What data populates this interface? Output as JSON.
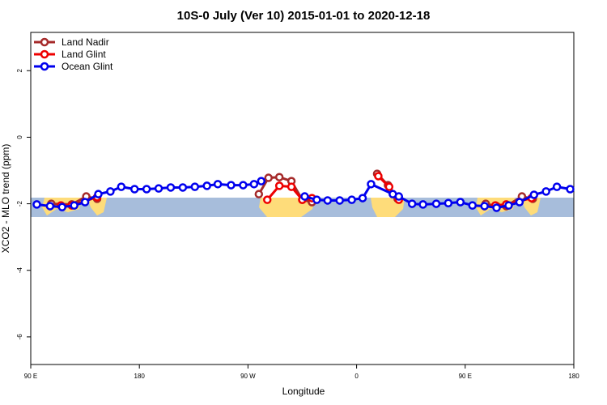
{
  "chart_data": {
    "type": "line",
    "title": "10S-0 July (Ver 10)   2015-01-01 to 2020-12-18",
    "x_label": "Longitude",
    "y_label": "XCO2 - MLO trend (ppm)",
    "xlim": [
      90,
      540
    ],
    "ylim": [
      -6.83,
      3.15
    ],
    "xticks": [
      {
        "value": 90,
        "label": "90 E"
      },
      180,
      {
        "value": 270,
        "label": "90 W"
      },
      {
        "value": 360,
        "label": "0"
      },
      {
        "value": 450,
        "label": "90 E"
      },
      {
        "value": 540,
        "label": "180"
      }
    ],
    "yticks": [
      2,
      0,
      -2,
      -4,
      -6
    ],
    "legend": "top-left",
    "series": [
      {
        "name": "Land Nadir",
        "color": "#a52a2a",
        "x": [
          107,
          124,
          136,
          145,
          null,
          279,
          287,
          296,
          306,
          315,
          323,
          null,
          377,
          386,
          394,
          null,
          467,
          476,
          484,
          497,
          506
        ],
        "values": [
          -2.0,
          -2.02,
          -1.78,
          -1.85,
          null,
          -1.71,
          -1.22,
          -1.2,
          -1.32,
          -1.88,
          -1.95,
          null,
          -1.1,
          -1.44,
          -1.85,
          null,
          -2.0,
          -2.07,
          -2.07,
          -1.78,
          -1.85
        ]
      },
      {
        "name": "Land Glint",
        "color": "#ee0000",
        "x": [
          115,
          124,
          145,
          null,
          286,
          296,
          306,
          315,
          323,
          null,
          378,
          387,
          395,
          null,
          475,
          484,
          505
        ],
        "values": [
          -2.05,
          -2.05,
          -1.8,
          null,
          -1.88,
          -1.46,
          -1.49,
          -1.88,
          -1.83,
          null,
          -1.17,
          -1.49,
          -1.88,
          null,
          -2.05,
          -2.02,
          -1.83
        ]
      },
      {
        "name": "Ocean Glint",
        "color": "#0000ee",
        "x": [
          95,
          106,
          116,
          126,
          135,
          146,
          156,
          165,
          176,
          186,
          196,
          206,
          216,
          226,
          236,
          245,
          256,
          266,
          275,
          281,
          null,
          317,
          327,
          336,
          346,
          356,
          365,
          372,
          390,
          395,
          406,
          415,
          426,
          436,
          446,
          456,
          466,
          476,
          486,
          495,
          507,
          517,
          526,
          537
        ],
        "values": [
          -2.02,
          -2.07,
          -2.1,
          -2.05,
          -1.95,
          -1.71,
          -1.63,
          -1.49,
          -1.56,
          -1.56,
          -1.54,
          -1.51,
          -1.51,
          -1.49,
          -1.46,
          -1.41,
          -1.44,
          -1.44,
          -1.41,
          -1.32,
          null,
          -1.78,
          -1.88,
          -1.9,
          -1.9,
          -1.88,
          -1.83,
          -1.41,
          -1.71,
          -1.78,
          -2.0,
          -2.02,
          -2.0,
          -1.98,
          -1.95,
          -2.05,
          -2.07,
          -2.12,
          -2.05,
          -1.95,
          -1.73,
          -1.63,
          -1.49,
          -1.56
        ]
      }
    ]
  }
}
